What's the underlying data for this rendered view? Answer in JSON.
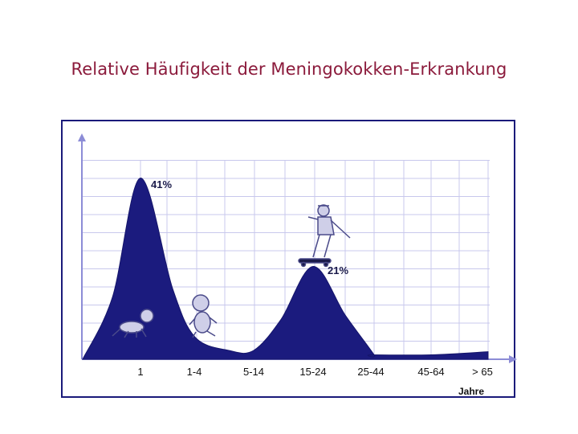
{
  "slide": {
    "title": "Relative Häufigkeit der Meningokokken-Erkrankung"
  },
  "colors": {
    "title": "#8b1a3b",
    "area_fill": "#1b1b7e",
    "axis": "#8c8cd6",
    "grid": "#c8c8ec",
    "frame": "#1a1a7a"
  },
  "chart_data": {
    "type": "area",
    "title": "Relative Häufigkeit der Meningokokken-Erkrankung",
    "xlabel": "Jahre",
    "ylabel": "",
    "categories": [
      "1",
      "1-4",
      "5-14",
      "15-24",
      "25-44",
      "45-64",
      "> 65"
    ],
    "grid": true,
    "ylim": [
      0,
      50
    ],
    "peaks": [
      {
        "category": "1",
        "value": 41,
        "label": "41%"
      },
      {
        "category": "15-24",
        "value": 21,
        "label": "21%"
      }
    ],
    "curve": [
      {
        "x": "0",
        "y": 0
      },
      {
        "x": "1",
        "y": 41
      },
      {
        "x": "1-4",
        "y": 7
      },
      {
        "x": "5-14",
        "y": 2
      },
      {
        "x": "15-24",
        "y": 21
      },
      {
        "x": "25-44",
        "y": 1
      },
      {
        "x": "45-64",
        "y": 1
      },
      {
        "x": "> 65",
        "y": 1.5
      }
    ],
    "illustrations": [
      "crawling-baby-icon",
      "sitting-toddler-icon",
      "skateboarder-icon"
    ]
  }
}
